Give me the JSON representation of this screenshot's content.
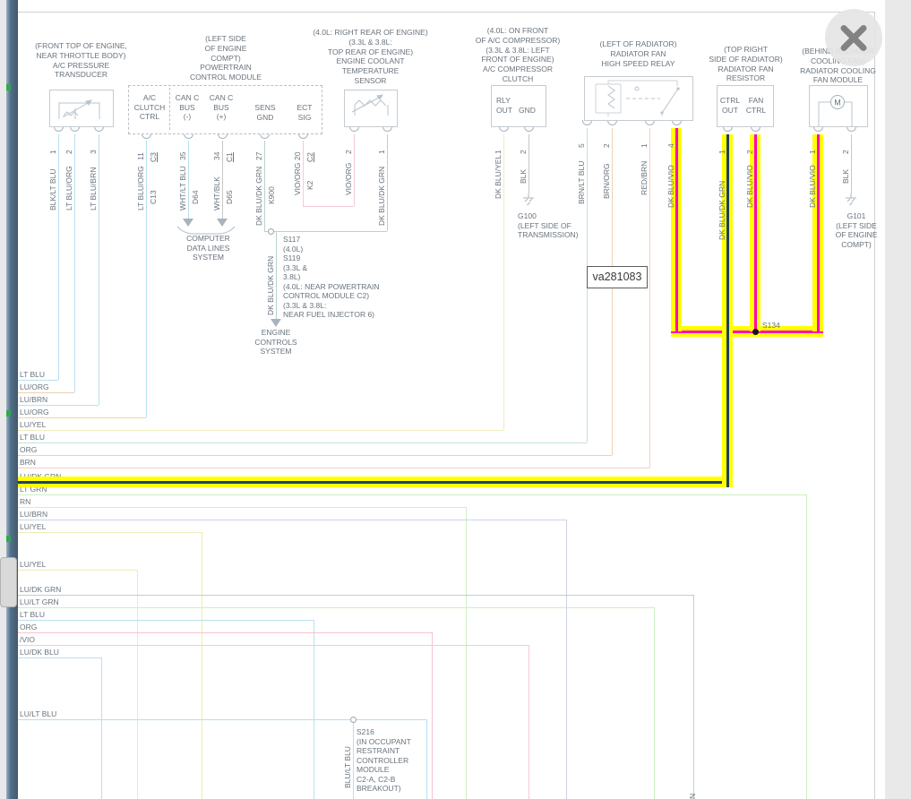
{
  "diagram": {
    "ref_label": "va281083",
    "components": {
      "transducer": {
        "caption": "(FRONT TOP OF ENGINE,\nNEAR THROTTLE BODY)\nA/C PRESSURE\nTRANSDUCER"
      },
      "pcm": {
        "caption": "(LEFT SIDE\nOF ENGINE\nCOMPT)\nPOWERTRAIN\nCONTROL MODULE",
        "terminals": {
          "t1": "A/C\nCLUTCH\nCTRL",
          "t2": "CAN C\nBUS\n(-)",
          "t3": "CAN C\nBUS\n(+)",
          "t4": "SENS\nGND",
          "t5": "ECT\nSIG"
        }
      },
      "ect": {
        "caption": "(4.0L: RIGHT REAR OF ENGINE)\n(3.3L & 3.8L:\nTOP REAR OF ENGINE)\nENGINE COOLANT\nTEMPERATURE\nSENSOR"
      },
      "clutch": {
        "caption": "(4.0L: ON FRONT\nOF A/C COMPRESSOR)\n(3.3L & 3.8L: LEFT\nFRONT OF ENGINE)\nA/C COMPRESSOR\nCLUTCH",
        "terminals": {
          "t1": "RLY\nOUT",
          "t2": "GND"
        }
      },
      "relay": {
        "caption": "(LEFT OF RADIATOR)\nRADIATOR FAN\nHIGH SPEED RELAY"
      },
      "resistor": {
        "caption": "(TOP RIGHT\nSIDE OF RADIATOR)\nRADIATOR FAN\nRESISTOR",
        "terminals": {
          "t1": "CTRL\nOUT",
          "t2": "FAN\nCTRL"
        }
      },
      "fan_module": {
        "caption": "(BEHIND RADIATOR\nCOOLING FAN)\nRADIATOR COOLING\nFAN MODULE",
        "motor": "M"
      }
    },
    "system_links": {
      "computer_data_lines": "COMPUTER\nDATA LINES\nSYSTEM",
      "engine_controls": "ENGINE\nCONTROLS\nSYSTEM"
    },
    "splices": {
      "s117_note": "S117\n(4.0L)\nS119\n(3.3L &\n3.8L)\n(4.0L: NEAR POWERTRAIN\nCONTROL MODULE C2)\n(3.3L & 3.8L:\nNEAR FUEL INJECTOR 6)",
      "s134": "S134",
      "s216_note": "S216\n(IN OCCUPANT\nRESTRAINT\nCONTROLLER\nMODULE\nC2-A, C2-B\nBREAKOUT)"
    },
    "grounds": {
      "g100": "G100\n(LEFT SIDE OF\nTRANSMISSION)",
      "g101": "G101\n(LEFT SIDE\nOF ENGINE\nCOMPT)"
    },
    "wires": {
      "vertical": [
        {
          "label": "BLK/LT BLU",
          "pin": "1"
        },
        {
          "label": "LT BLU/ORG",
          "pin": "2"
        },
        {
          "label": "LT BLU/BRN",
          "pin": "3"
        },
        {
          "label": "LT BLU/ORG",
          "pin": "11",
          "conn": "C3",
          "circuit": "C13"
        },
        {
          "label": "WHT/LT BLU",
          "pin": "35",
          "circuit": "D64"
        },
        {
          "label": "WHT/BLK",
          "pin": "34",
          "conn": "C1",
          "circuit": "D65"
        },
        {
          "label": "DK BLU/DK GRN",
          "pin": "27",
          "circuit": "K900"
        },
        {
          "label": "VIO/ORG",
          "pin": "20",
          "conn": "C2",
          "circuit": "K2"
        },
        {
          "label": "VIO/ORG",
          "pin": "2"
        },
        {
          "label": "DK BLU/DK GRN",
          "pin": "1"
        },
        {
          "label": "DK BLU/YEL",
          "pin": "1"
        },
        {
          "label": "BLK",
          "pin": "2"
        },
        {
          "label": "BRN/LT BLU",
          "pin": "5"
        },
        {
          "label": "BRN/ORG",
          "pin": "2"
        },
        {
          "label": "RED/BRN",
          "pin": "1"
        },
        {
          "label": "DK BLU/VIO",
          "pin": "4"
        },
        {
          "label": "DK BLU/DK GRN",
          "pin": "1"
        },
        {
          "label": "DK BLU/VIO",
          "pin": "2"
        },
        {
          "label": "DK BLU/VIO",
          "pin": "1"
        },
        {
          "label": "BLK",
          "pin": "2"
        },
        {
          "label": "DK BLU/DK GRN"
        },
        {
          "label": "BLU/LT BLU"
        },
        {
          "label": ""
        }
      ],
      "left_edge": [
        "LT BLU",
        "LU/ORG",
        "LU/BRN",
        "LU/ORG",
        "LU/YEL",
        "LT BLU",
        "ORG",
        "BRN",
        "LU/DK GRN",
        "LT GRN",
        "RN",
        "LU/BRN",
        "LU/YEL",
        "LU/YEL",
        "LU/DK GRN",
        "LU/LT GRN",
        "LT BLU",
        "ORG",
        "/VIO",
        "LU/DK BLU",
        "LU/LT BLU"
      ],
      "bottom_cut_label": "N"
    },
    "colors": {
      "lightblue": "#b9e0ef",
      "tan": "#ecd2b4",
      "teal": "#c0e4da",
      "grayteal": "#b7d3ca",
      "pink": "#f7c8dc",
      "paleyellow": "#eeecba",
      "gray": "#c7c7c7",
      "salmon": "#f1cec2",
      "lightgreen": "#cdf0c3",
      "lavender": "#ced2e6",
      "rose": "#f5c3cb",
      "highlight_yellow": "#ffff00",
      "highlight_magenta": "#ff00bb",
      "highlight_navy": "#1e3f66",
      "text": "#68737e"
    }
  }
}
